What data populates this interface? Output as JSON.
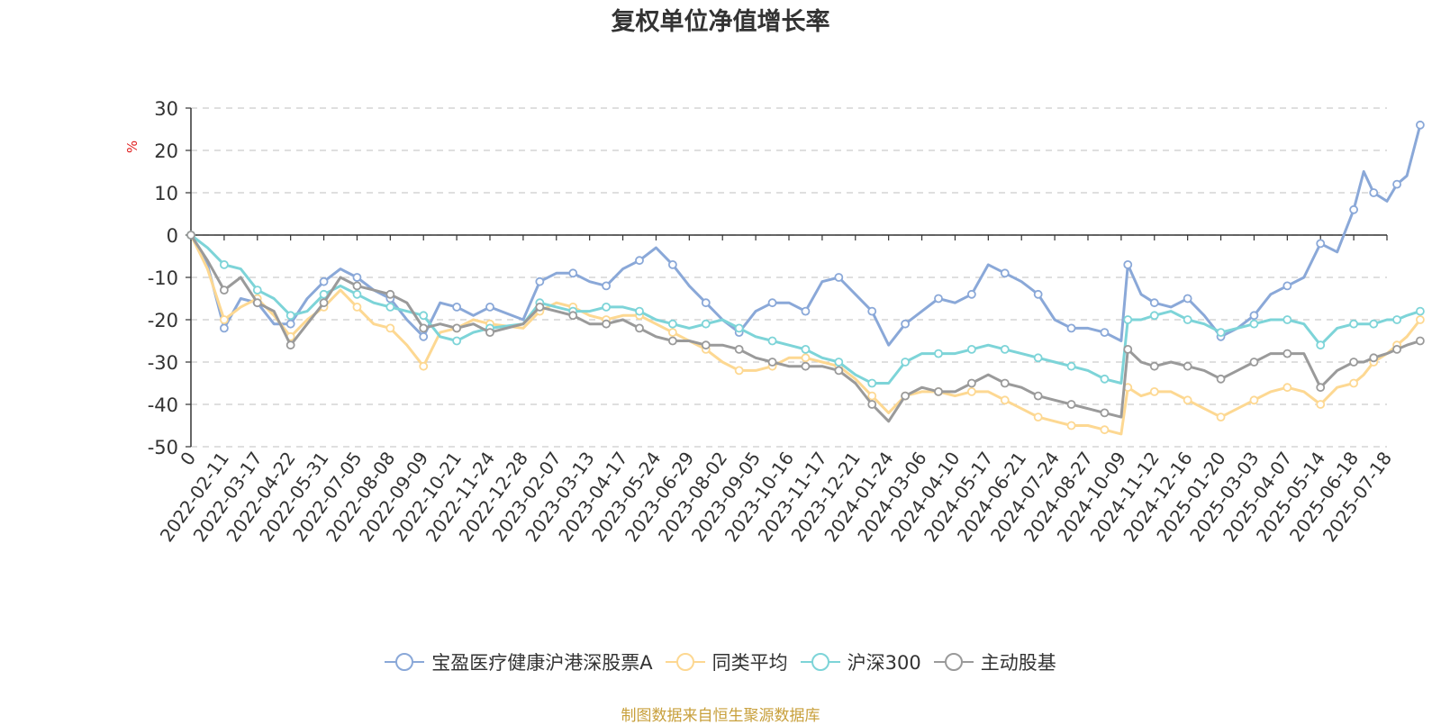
{
  "chart_data": {
    "type": "line",
    "title": "复权单位净值增长率",
    "ylabel": "%",
    "ylim": [
      -50,
      30
    ],
    "yticks": [
      "30",
      "20",
      "10",
      "0",
      "-10",
      "-20",
      "-30",
      "-40",
      "-50"
    ],
    "yticks_values": [
      30,
      20,
      10,
      0,
      -10,
      -20,
      -30,
      -40,
      -50
    ],
    "xticks": [
      "0",
      "2022-02-11",
      "2022-03-17",
      "2022-04-22",
      "2022-05-31",
      "2022-07-05",
      "2022-08-08",
      "2022-09-09",
      "2022-10-21",
      "2022-11-24",
      "2022-12-28",
      "2023-02-07",
      "2023-03-13",
      "2023-04-17",
      "2023-05-24",
      "2023-06-29",
      "2023-08-02",
      "2023-09-05",
      "2023-10-16",
      "2023-11-17",
      "2023-12-21",
      "2024-01-24",
      "2024-03-06",
      "2024-04-10",
      "2024-05-17",
      "2024-06-21",
      "2024-07-24",
      "2024-08-27",
      "2024-10-09",
      "2024-11-12",
      "2024-12-16",
      "2025-01-20",
      "2025-03-03",
      "2025-04-07",
      "2025-05-14",
      "2025-06-18",
      "2025-07-18"
    ],
    "grid": true,
    "legend_position": "bottom",
    "series": [
      {
        "name": "宝盈医疗健康沪港深股票A",
        "color": "#8aa8d8",
        "points": [
          [
            0,
            0
          ],
          [
            0.5,
            -7
          ],
          [
            1,
            -22
          ],
          [
            1.5,
            -15
          ],
          [
            2,
            -16
          ],
          [
            2.5,
            -21
          ],
          [
            3,
            -21
          ],
          [
            3.5,
            -15
          ],
          [
            4,
            -11
          ],
          [
            4.5,
            -8
          ],
          [
            5,
            -10
          ],
          [
            5.5,
            -13
          ],
          [
            6,
            -15
          ],
          [
            6.5,
            -20
          ],
          [
            7,
            -24
          ],
          [
            7.5,
            -16
          ],
          [
            8,
            -17
          ],
          [
            8.5,
            -19
          ],
          [
            9,
            -17
          ],
          [
            10,
            -20
          ],
          [
            10.5,
            -11
          ],
          [
            11,
            -9
          ],
          [
            11.5,
            -9
          ],
          [
            12,
            -11
          ],
          [
            12.5,
            -12
          ],
          [
            13,
            -8
          ],
          [
            13.5,
            -6
          ],
          [
            14,
            -3
          ],
          [
            14.5,
            -7
          ],
          [
            15,
            -12
          ],
          [
            15.5,
            -16
          ],
          [
            16,
            -20
          ],
          [
            16.5,
            -23
          ],
          [
            17,
            -18
          ],
          [
            17.5,
            -16
          ],
          [
            18,
            -16
          ],
          [
            18.5,
            -18
          ],
          [
            19,
            -11
          ],
          [
            19.5,
            -10
          ],
          [
            20,
            -14
          ],
          [
            20.5,
            -18
          ],
          [
            21,
            -26
          ],
          [
            21.5,
            -21
          ],
          [
            22,
            -18
          ],
          [
            22.5,
            -15
          ],
          [
            23,
            -16
          ],
          [
            23.5,
            -14
          ],
          [
            24,
            -7
          ],
          [
            24.5,
            -9
          ],
          [
            25,
            -11
          ],
          [
            25.5,
            -14
          ],
          [
            26,
            -20
          ],
          [
            26.5,
            -22
          ],
          [
            27,
            -22
          ],
          [
            27.5,
            -23
          ],
          [
            28,
            -25
          ],
          [
            28.2,
            -7
          ],
          [
            28.6,
            -14
          ],
          [
            29,
            -16
          ],
          [
            29.5,
            -17
          ],
          [
            30,
            -15
          ],
          [
            30.5,
            -19
          ],
          [
            31,
            -24
          ],
          [
            31.5,
            -22
          ],
          [
            32,
            -19
          ],
          [
            32.5,
            -14
          ],
          [
            33,
            -12
          ],
          [
            33.5,
            -10
          ],
          [
            34,
            -2
          ],
          [
            34.5,
            -4
          ],
          [
            35,
            6
          ],
          [
            35.3,
            15
          ],
          [
            35.6,
            10
          ],
          [
            36,
            8
          ],
          [
            36.3,
            12
          ],
          [
            36.6,
            14
          ],
          [
            37,
            26
          ]
        ]
      },
      {
        "name": "同类平均",
        "color": "#fdd892",
        "points": [
          [
            0,
            0
          ],
          [
            0.5,
            -8
          ],
          [
            1,
            -20
          ],
          [
            1.5,
            -17
          ],
          [
            2,
            -15
          ],
          [
            2.5,
            -19
          ],
          [
            3,
            -24
          ],
          [
            3.5,
            -20
          ],
          [
            4,
            -17
          ],
          [
            4.5,
            -13
          ],
          [
            5,
            -17
          ],
          [
            5.5,
            -21
          ],
          [
            6,
            -22
          ],
          [
            6.5,
            -26
          ],
          [
            7,
            -31
          ],
          [
            7.5,
            -23
          ],
          [
            8,
            -22
          ],
          [
            8.5,
            -20
          ],
          [
            9,
            -21
          ],
          [
            10,
            -22
          ],
          [
            10.5,
            -18
          ],
          [
            11,
            -16
          ],
          [
            11.5,
            -17
          ],
          [
            12,
            -19
          ],
          [
            12.5,
            -20
          ],
          [
            13,
            -19
          ],
          [
            13.5,
            -19
          ],
          [
            14,
            -21
          ],
          [
            14.5,
            -23
          ],
          [
            15,
            -25
          ],
          [
            15.5,
            -27
          ],
          [
            16,
            -30
          ],
          [
            16.5,
            -32
          ],
          [
            17,
            -32
          ],
          [
            17.5,
            -31
          ],
          [
            18,
            -29
          ],
          [
            18.5,
            -29
          ],
          [
            19,
            -30
          ],
          [
            19.5,
            -31
          ],
          [
            20,
            -34
          ],
          [
            20.5,
            -38
          ],
          [
            21,
            -42
          ],
          [
            21.5,
            -38
          ],
          [
            22,
            -37
          ],
          [
            22.5,
            -37
          ],
          [
            23,
            -38
          ],
          [
            23.5,
            -37
          ],
          [
            24,
            -37
          ],
          [
            24.5,
            -39
          ],
          [
            25,
            -41
          ],
          [
            25.5,
            -43
          ],
          [
            26,
            -44
          ],
          [
            26.5,
            -45
          ],
          [
            27,
            -45
          ],
          [
            27.5,
            -46
          ],
          [
            28,
            -47
          ],
          [
            28.2,
            -36
          ],
          [
            28.6,
            -38
          ],
          [
            29,
            -37
          ],
          [
            29.5,
            -37
          ],
          [
            30,
            -39
          ],
          [
            30.5,
            -41
          ],
          [
            31,
            -43
          ],
          [
            31.5,
            -41
          ],
          [
            32,
            -39
          ],
          [
            32.5,
            -37
          ],
          [
            33,
            -36
          ],
          [
            33.5,
            -37
          ],
          [
            34,
            -40
          ],
          [
            34.5,
            -36
          ],
          [
            35,
            -35
          ],
          [
            35.3,
            -33
          ],
          [
            35.6,
            -30
          ],
          [
            36,
            -28
          ],
          [
            36.3,
            -26
          ],
          [
            36.6,
            -24
          ],
          [
            37,
            -20
          ]
        ]
      },
      {
        "name": "沪深300",
        "color": "#7dd4d8",
        "points": [
          [
            0,
            0
          ],
          [
            0.5,
            -3
          ],
          [
            1,
            -7
          ],
          [
            1.5,
            -8
          ],
          [
            2,
            -13
          ],
          [
            2.5,
            -15
          ],
          [
            3,
            -19
          ],
          [
            3.5,
            -18
          ],
          [
            4,
            -14
          ],
          [
            4.5,
            -12
          ],
          [
            5,
            -14
          ],
          [
            5.5,
            -16
          ],
          [
            6,
            -17
          ],
          [
            6.5,
            -18
          ],
          [
            7,
            -19
          ],
          [
            7.5,
            -24
          ],
          [
            8,
            -25
          ],
          [
            8.5,
            -23
          ],
          [
            9,
            -22
          ],
          [
            10,
            -21
          ],
          [
            10.5,
            -16
          ],
          [
            11,
            -17
          ],
          [
            11.5,
            -18
          ],
          [
            12,
            -18
          ],
          [
            12.5,
            -17
          ],
          [
            13,
            -17
          ],
          [
            13.5,
            -18
          ],
          [
            14,
            -20
          ],
          [
            14.5,
            -21
          ],
          [
            15,
            -22
          ],
          [
            15.5,
            -21
          ],
          [
            16,
            -20
          ],
          [
            16.5,
            -22
          ],
          [
            17,
            -24
          ],
          [
            17.5,
            -25
          ],
          [
            18,
            -26
          ],
          [
            18.5,
            -27
          ],
          [
            19,
            -29
          ],
          [
            19.5,
            -30
          ],
          [
            20,
            -33
          ],
          [
            20.5,
            -35
          ],
          [
            21,
            -35
          ],
          [
            21.5,
            -30
          ],
          [
            22,
            -28
          ],
          [
            22.5,
            -28
          ],
          [
            23,
            -28
          ],
          [
            23.5,
            -27
          ],
          [
            24,
            -26
          ],
          [
            24.5,
            -27
          ],
          [
            25,
            -28
          ],
          [
            25.5,
            -29
          ],
          [
            26,
            -30
          ],
          [
            26.5,
            -31
          ],
          [
            27,
            -32
          ],
          [
            27.5,
            -34
          ],
          [
            28,
            -35
          ],
          [
            28.2,
            -20
          ],
          [
            28.6,
            -20
          ],
          [
            29,
            -19
          ],
          [
            29.5,
            -18
          ],
          [
            30,
            -20
          ],
          [
            30.5,
            -21
          ],
          [
            31,
            -23
          ],
          [
            31.5,
            -22
          ],
          [
            32,
            -21
          ],
          [
            32.5,
            -20
          ],
          [
            33,
            -20
          ],
          [
            33.5,
            -21
          ],
          [
            34,
            -26
          ],
          [
            34.5,
            -22
          ],
          [
            35,
            -21
          ],
          [
            35.3,
            -21
          ],
          [
            35.6,
            -21
          ],
          [
            36,
            -20
          ],
          [
            36.3,
            -20
          ],
          [
            36.6,
            -19
          ],
          [
            37,
            -18
          ]
        ]
      },
      {
        "name": "主动股基",
        "color": "#9a9a9a",
        "points": [
          [
            0,
            0
          ],
          [
            0.5,
            -6
          ],
          [
            1,
            -13
          ],
          [
            1.5,
            -10
          ],
          [
            2,
            -16
          ],
          [
            2.5,
            -18
          ],
          [
            3,
            -26
          ],
          [
            3.5,
            -21
          ],
          [
            4,
            -16
          ],
          [
            4.5,
            -10
          ],
          [
            5,
            -12
          ],
          [
            5.5,
            -13
          ],
          [
            6,
            -14
          ],
          [
            6.5,
            -16
          ],
          [
            7,
            -22
          ],
          [
            7.5,
            -21
          ],
          [
            8,
            -22
          ],
          [
            8.5,
            -21
          ],
          [
            9,
            -23
          ],
          [
            10,
            -21
          ],
          [
            10.5,
            -17
          ],
          [
            11,
            -18
          ],
          [
            11.5,
            -19
          ],
          [
            12,
            -21
          ],
          [
            12.5,
            -21
          ],
          [
            13,
            -20
          ],
          [
            13.5,
            -22
          ],
          [
            14,
            -24
          ],
          [
            14.5,
            -25
          ],
          [
            15,
            -25
          ],
          [
            15.5,
            -26
          ],
          [
            16,
            -26
          ],
          [
            16.5,
            -27
          ],
          [
            17,
            -29
          ],
          [
            17.5,
            -30
          ],
          [
            18,
            -31
          ],
          [
            18.5,
            -31
          ],
          [
            19,
            -31
          ],
          [
            19.5,
            -32
          ],
          [
            20,
            -35
          ],
          [
            20.5,
            -40
          ],
          [
            21,
            -44
          ],
          [
            21.5,
            -38
          ],
          [
            22,
            -36
          ],
          [
            22.5,
            -37
          ],
          [
            23,
            -37
          ],
          [
            23.5,
            -35
          ],
          [
            24,
            -33
          ],
          [
            24.5,
            -35
          ],
          [
            25,
            -36
          ],
          [
            25.5,
            -38
          ],
          [
            26,
            -39
          ],
          [
            26.5,
            -40
          ],
          [
            27,
            -41
          ],
          [
            27.5,
            -42
          ],
          [
            28,
            -43
          ],
          [
            28.2,
            -27
          ],
          [
            28.6,
            -30
          ],
          [
            29,
            -31
          ],
          [
            29.5,
            -30
          ],
          [
            30,
            -31
          ],
          [
            30.5,
            -32
          ],
          [
            31,
            -34
          ],
          [
            31.5,
            -32
          ],
          [
            32,
            -30
          ],
          [
            32.5,
            -28
          ],
          [
            33,
            -28
          ],
          [
            33.5,
            -28
          ],
          [
            34,
            -36
          ],
          [
            34.5,
            -32
          ],
          [
            35,
            -30
          ],
          [
            35.3,
            -30
          ],
          [
            35.6,
            -29
          ],
          [
            36,
            -28
          ],
          [
            36.3,
            -27
          ],
          [
            36.6,
            -26
          ],
          [
            37,
            -25
          ]
        ]
      }
    ]
  },
  "source_text": "制图数据来自恒生聚源数据库"
}
